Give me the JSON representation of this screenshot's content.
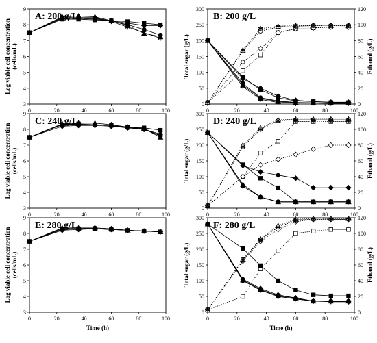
{
  "chart_data": [
    {
      "id": "A",
      "type": "line",
      "title": "A: 200 g/L",
      "xlabel": "",
      "ylabel_lines": [
        "Log viable cell concentration",
        "(cells/mL)"
      ],
      "xlim": [
        0,
        100
      ],
      "ylim": [
        3,
        9
      ],
      "xticks": [
        0,
        20,
        40,
        60,
        80,
        100
      ],
      "yticks": [
        3,
        4,
        5,
        6,
        7,
        8,
        9
      ],
      "x": [
        0,
        24,
        36,
        48,
        60,
        72,
        84,
        96
      ],
      "series": [
        {
          "marker": "square",
          "style": "solid",
          "values": [
            7.5,
            8.35,
            8.35,
            8.3,
            8.25,
            8.2,
            8.1,
            8.0
          ]
        },
        {
          "marker": "diamond",
          "style": "solid",
          "values": [
            7.5,
            8.4,
            8.4,
            8.4,
            8.25,
            8.1,
            7.95,
            7.95
          ]
        },
        {
          "marker": "circle",
          "style": "solid",
          "values": [
            7.5,
            8.45,
            8.4,
            8.35,
            8.25,
            8.0,
            7.7,
            7.35
          ]
        },
        {
          "marker": "triangle",
          "style": "solid",
          "values": [
            7.5,
            8.5,
            8.55,
            8.5,
            8.25,
            7.95,
            7.45,
            7.25
          ]
        },
        {
          "marker": "star",
          "style": "solid",
          "values": [
            7.5,
            8.45,
            8.45,
            8.45,
            8.2,
            7.85,
            7.5,
            7.15
          ]
        }
      ]
    },
    {
      "id": "B",
      "type": "line",
      "title": "B: 200 g/L",
      "xlabel": "",
      "ylabel": "Total sugar (g/L)",
      "y2label": "Ethanol (g/L)",
      "xlim": [
        0,
        100
      ],
      "ylim": [
        0,
        300
      ],
      "y2lim": [
        0,
        120
      ],
      "xticks": [
        0,
        20,
        40,
        60,
        80,
        100
      ],
      "yticks": [
        0,
        50,
        100,
        150,
        200,
        250,
        300
      ],
      "y2ticks": [
        0,
        20,
        40,
        60,
        80,
        100,
        120
      ],
      "x": [
        0,
        24,
        36,
        48,
        60,
        72,
        84,
        96
      ],
      "sugar_series": [
        {
          "marker": "square",
          "style": "solid",
          "values": [
            200,
            85,
            45,
            20,
            10,
            8,
            5,
            5
          ]
        },
        {
          "marker": "diamond",
          "style": "solid",
          "values": [
            200,
            80,
            50,
            25,
            12,
            8,
            6,
            6
          ]
        },
        {
          "marker": "circle",
          "style": "solid",
          "values": [
            200,
            65,
            20,
            10,
            5,
            4,
            3,
            3
          ]
        },
        {
          "marker": "triangle",
          "style": "solid",
          "values": [
            200,
            60,
            18,
            8,
            4,
            3,
            3,
            3
          ]
        },
        {
          "marker": "star",
          "style": "solid",
          "values": [
            200,
            55,
            15,
            5,
            3,
            3,
            2,
            2
          ]
        }
      ],
      "ethanol_series": [
        {
          "marker": "square",
          "style": "dotted",
          "values": [
            2,
            42,
            62,
            90,
            95,
            96,
            97,
            98
          ]
        },
        {
          "marker": "diamond",
          "style": "dotted",
          "values": [
            2,
            53,
            70,
            90,
            95,
            96,
            97,
            97
          ]
        },
        {
          "marker": "circle",
          "style": "dotted",
          "values": [
            2,
            67,
            92,
            97,
            98,
            99,
            99,
            99
          ]
        },
        {
          "marker": "triangle",
          "style": "dotted",
          "values": [
            2,
            68,
            95,
            98,
            99,
            99,
            99,
            99
          ]
        },
        {
          "marker": "star",
          "style": "dotted",
          "values": [
            2,
            68,
            95,
            98,
            99,
            99,
            99,
            99
          ]
        }
      ]
    },
    {
      "id": "C",
      "type": "line",
      "title": "C: 240 g/L",
      "xlabel": "",
      "ylabel_lines": [
        "Log viable cell concentration",
        "(cells/mL)"
      ],
      "xlim": [
        0,
        100
      ],
      "ylim": [
        3,
        9
      ],
      "xticks": [
        0,
        20,
        40,
        60,
        80,
        100
      ],
      "yticks": [
        3,
        4,
        5,
        6,
        7,
        8,
        9
      ],
      "x": [
        0,
        24,
        36,
        48,
        60,
        72,
        84,
        96
      ],
      "series": [
        {
          "marker": "square",
          "style": "solid",
          "values": [
            7.5,
            8.3,
            8.35,
            8.3,
            8.25,
            8.15,
            8.1,
            7.95
          ]
        },
        {
          "marker": "diamond",
          "style": "solid",
          "values": [
            7.5,
            8.2,
            8.25,
            8.25,
            8.2,
            8.1,
            8.0,
            7.7
          ]
        },
        {
          "marker": "circle",
          "style": "solid",
          "values": [
            7.5,
            8.3,
            8.3,
            8.3,
            8.25,
            8.1,
            8.05,
            7.6
          ]
        },
        {
          "marker": "triangle",
          "style": "solid",
          "values": [
            7.5,
            8.35,
            8.4,
            8.4,
            8.3,
            8.15,
            8.05,
            7.5
          ]
        },
        {
          "marker": "star",
          "style": "solid",
          "values": [
            7.5,
            8.35,
            8.3,
            8.3,
            8.25,
            8.1,
            8.0,
            7.6
          ]
        }
      ]
    },
    {
      "id": "D",
      "type": "line",
      "title": "D: 240 g/L",
      "xlabel": "",
      "ylabel": "Total sugar (g/L)",
      "y2label": "Ethanol (g/L)",
      "xlim": [
        0,
        100
      ],
      "ylim": [
        0,
        300
      ],
      "y2lim": [
        0,
        120
      ],
      "xticks": [
        0,
        20,
        40,
        60,
        80,
        100
      ],
      "yticks": [
        0,
        50,
        100,
        150,
        200,
        250,
        300
      ],
      "y2ticks": [
        0,
        20,
        40,
        60,
        80,
        100,
        120
      ],
      "x": [
        0,
        24,
        36,
        48,
        60,
        72,
        84,
        96
      ],
      "sugar_series": [
        {
          "marker": "square",
          "style": "solid",
          "values": [
            240,
            138,
            95,
            65,
            20,
            20,
            20,
            20
          ]
        },
        {
          "marker": "diamond",
          "style": "solid",
          "values": [
            240,
            135,
            115,
            105,
            95,
            65,
            65,
            65
          ]
        },
        {
          "marker": "circle",
          "style": "solid",
          "values": [
            240,
            70,
            35,
            20,
            20,
            20,
            20,
            20
          ]
        },
        {
          "marker": "triangle",
          "style": "solid",
          "values": [
            240,
            75,
            35,
            20,
            20,
            20,
            20,
            20
          ]
        },
        {
          "marker": "star",
          "style": "solid",
          "values": [
            240,
            70,
            35,
            20,
            20,
            20,
            20,
            20
          ]
        }
      ],
      "ethanol_series": [
        {
          "marker": "square",
          "style": "dotted",
          "values": [
            3,
            40,
            70,
            85,
            110,
            110,
            110,
            110
          ]
        },
        {
          "marker": "diamond",
          "style": "dotted",
          "values": [
            3,
            40,
            55,
            62,
            68,
            75,
            80,
            80
          ]
        },
        {
          "marker": "circle",
          "style": "dotted",
          "values": [
            3,
            78,
            100,
            111,
            112,
            112,
            112,
            112
          ]
        },
        {
          "marker": "triangle",
          "style": "dotted",
          "values": [
            3,
            80,
            102,
            112,
            113,
            113,
            113,
            113
          ]
        },
        {
          "marker": "star",
          "style": "dotted",
          "values": [
            3,
            78,
            100,
            111,
            112,
            112,
            112,
            112
          ]
        }
      ]
    },
    {
      "id": "E",
      "type": "line",
      "title": "E: 280 g/L",
      "xlabel": "Time (h)",
      "ylabel_lines": [
        "Log viable cell concentration",
        "(cells/mL)"
      ],
      "xlim": [
        0,
        100
      ],
      "ylim": [
        3,
        9
      ],
      "xticks": [
        0,
        20,
        40,
        60,
        80,
        100
      ],
      "yticks": [
        3,
        4,
        5,
        6,
        7,
        8,
        9
      ],
      "x": [
        0,
        24,
        36,
        48,
        60,
        72,
        84,
        96
      ],
      "series": [
        {
          "marker": "square",
          "style": "solid",
          "values": [
            7.5,
            8.25,
            8.3,
            8.3,
            8.25,
            8.2,
            8.15,
            8.1
          ]
        },
        {
          "marker": "diamond",
          "style": "solid",
          "values": [
            7.5,
            8.2,
            8.25,
            8.3,
            8.25,
            8.2,
            8.15,
            8.1
          ]
        },
        {
          "marker": "triangle",
          "style": "solid",
          "values": [
            7.5,
            8.35,
            8.35,
            8.35,
            8.3,
            8.2,
            8.15,
            8.1
          ]
        },
        {
          "marker": "star",
          "style": "solid",
          "values": [
            7.5,
            8.3,
            8.3,
            8.3,
            8.25,
            8.2,
            8.15,
            8.1
          ]
        },
        {
          "marker": "circle",
          "style": "solid",
          "values": [
            7.5,
            8.3,
            8.3,
            8.35,
            8.3,
            8.2,
            8.15,
            8.1
          ]
        }
      ]
    },
    {
      "id": "F",
      "type": "line",
      "title": "F: 280 g/L",
      "xlabel": "Time (h)",
      "ylabel": "Total sugar (g/L)",
      "y2label": "Ethanol (g/L)",
      "xlim": [
        0,
        100
      ],
      "ylim": [
        0,
        300
      ],
      "y2lim": [
        0,
        120
      ],
      "xticks": [
        0,
        20,
        40,
        60,
        80,
        100
      ],
      "yticks": [
        0,
        50,
        100,
        150,
        200,
        250,
        300
      ],
      "y2ticks": [
        0,
        20,
        40,
        60,
        80,
        100,
        120
      ],
      "x": [
        0,
        24,
        36,
        48,
        60,
        72,
        84,
        96
      ],
      "sugar_series": [
        {
          "marker": "square",
          "style": "solid",
          "values": [
            280,
            202,
            148,
            100,
            70,
            55,
            52,
            52
          ]
        },
        {
          "marker": "diamond",
          "style": "solid",
          "values": [
            280,
            105,
            75,
            55,
            45,
            35,
            35,
            33
          ]
        },
        {
          "marker": "circle",
          "style": "solid",
          "values": [
            280,
            100,
            70,
            50,
            42,
            35,
            35,
            35
          ]
        },
        {
          "marker": "triangle",
          "style": "solid",
          "values": [
            280,
            102,
            72,
            52,
            45,
            35,
            35,
            35
          ]
        },
        {
          "marker": "star",
          "style": "solid",
          "values": [
            280,
            100,
            70,
            50,
            42,
            35,
            33,
            33
          ]
        }
      ],
      "ethanol_series": [
        {
          "marker": "square",
          "style": "dotted",
          "values": [
            3,
            20,
            55,
            78,
            100,
            103,
            105,
            105
          ]
        },
        {
          "marker": "diamond",
          "style": "dotted",
          "values": [
            3,
            65,
            90,
            105,
            115,
            118,
            118,
            118
          ]
        },
        {
          "marker": "circle",
          "style": "dotted",
          "values": [
            3,
            67,
            92,
            108,
            117,
            118,
            118,
            118
          ]
        },
        {
          "marker": "triangle",
          "style": "dotted",
          "values": [
            3,
            67,
            93,
            110,
            118,
            119,
            119,
            119
          ]
        },
        {
          "marker": "star",
          "style": "dotted",
          "values": [
            3,
            66,
            92,
            108,
            117,
            118,
            118,
            118
          ]
        }
      ]
    }
  ]
}
